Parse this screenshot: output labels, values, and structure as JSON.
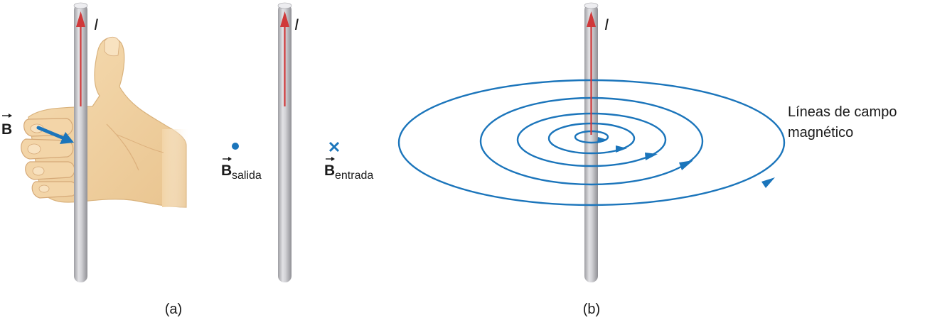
{
  "labels": {
    "current": "I",
    "field_symbol": "B",
    "out_subscript": "salida",
    "in_subscript": "entrada",
    "field_lines_line1": "Líneas de campo",
    "field_lines_line2": "magnético",
    "panel_a": "(a)",
    "panel_b": "(b)"
  },
  "colors": {
    "current_arrow": "#d0393a",
    "field": "#1b75bb",
    "wire": "#b9b9bd",
    "hand": "#f2d4a6"
  },
  "icons": [
    "right-hand-thumbs-up-icon",
    "dot-out-of-page-icon",
    "cross-into-page-icon"
  ]
}
